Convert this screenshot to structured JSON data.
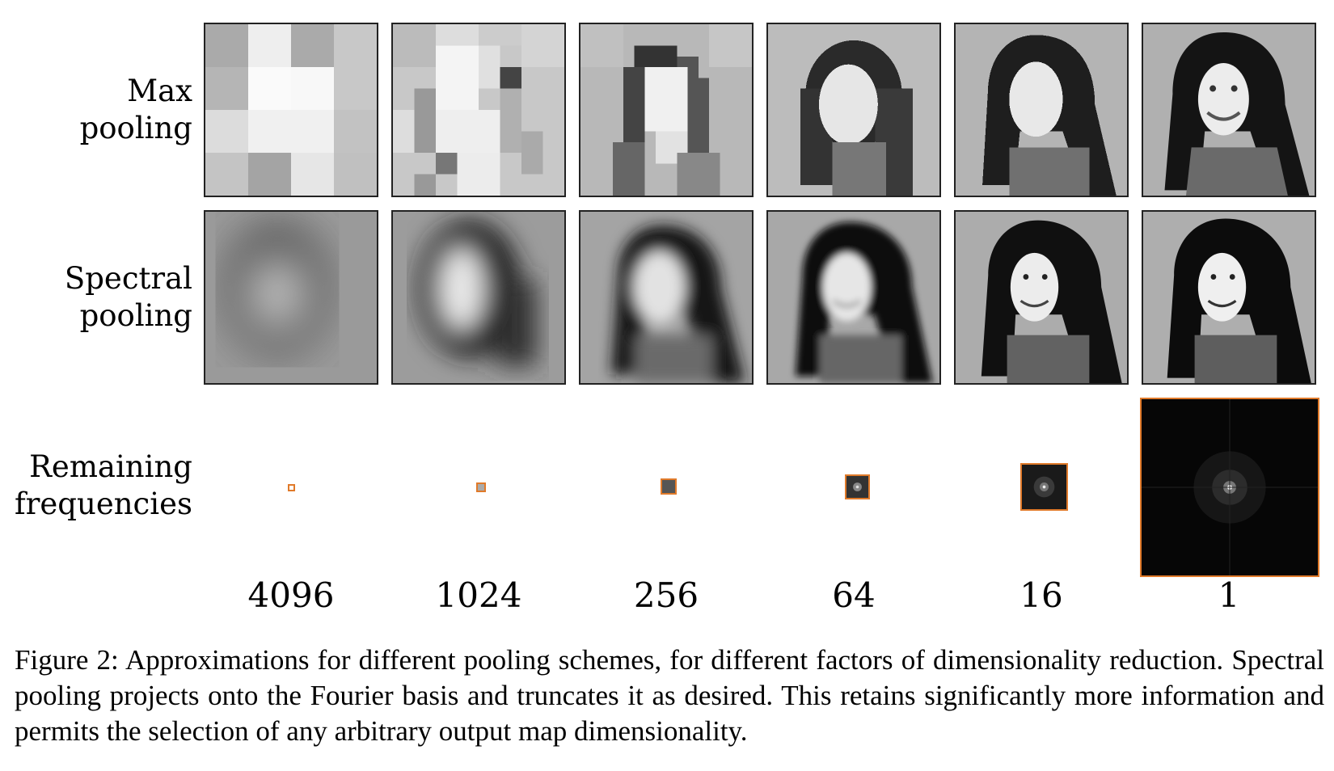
{
  "rows": {
    "max_pooling": {
      "line1": "Max",
      "line2": "pooling"
    },
    "spectral_pooling": {
      "line1": "Spectral",
      "line2": "pooling"
    },
    "remaining_frequencies": {
      "line1": "Remaining",
      "line2": "frequencies"
    }
  },
  "factors": [
    "4096",
    "1024",
    "256",
    "64",
    "16",
    "1"
  ],
  "caption": "Figure 2: Approximations for different pooling schemes, for different factors of dimensionality reduction. Spectral pooling projects onto the Fourier basis and truncates it as desired. This retains significantly more information and permits the selection of any arbitrary output map dimensionality.",
  "colors": {
    "frequency_box_border": "#e07a2a",
    "tile_border": "#222222"
  }
}
